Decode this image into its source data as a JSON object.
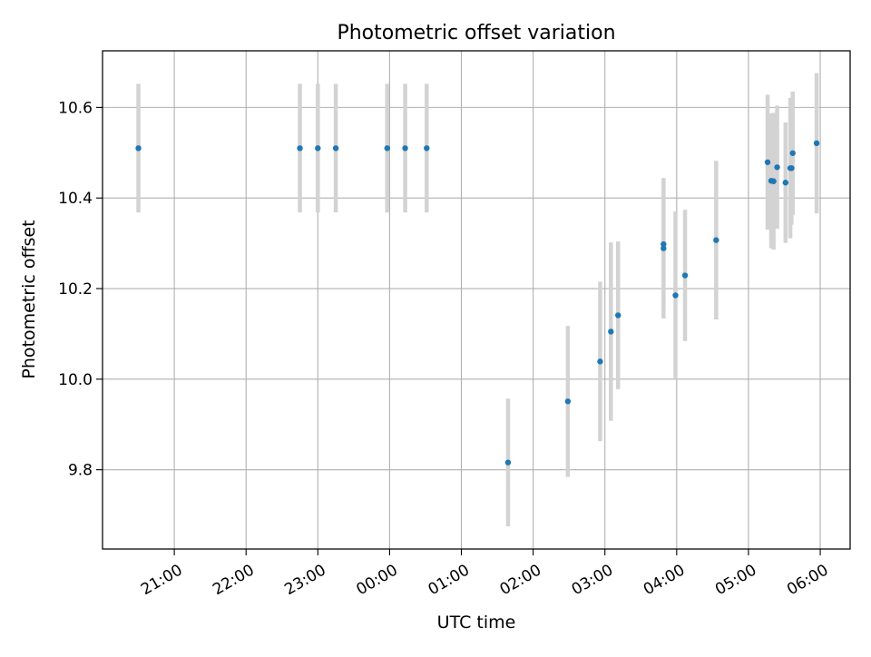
{
  "colors": {
    "point": "#1f77b4",
    "errorbar": "#d3d3d3",
    "grid": "#b0b0b0",
    "axes": "#000000"
  },
  "chart_data": {
    "type": "scatter",
    "title": "Photometric offset variation",
    "xlabel": "UTC time",
    "ylabel": "Photometric offset",
    "grid": true,
    "x_axis": "time (hours from 21:00)",
    "xlim": [
      "20:00",
      "06:25"
    ],
    "ylim": [
      9.625,
      10.725
    ],
    "x_ticks": [
      "21:00",
      "22:00",
      "23:00",
      "00:00",
      "01:00",
      "02:00",
      "03:00",
      "04:00",
      "05:00",
      "06:00"
    ],
    "y_ticks": [
      "9.8",
      "10.0",
      "10.2",
      "10.4",
      "10.6"
    ],
    "points": [
      {
        "time": "20:30",
        "y": 10.51,
        "err": 0.142
      },
      {
        "time": "22:45",
        "y": 10.51,
        "err": 0.142
      },
      {
        "time": "23:00",
        "y": 10.51,
        "err": 0.142
      },
      {
        "time": "23:15",
        "y": 10.51,
        "err": 0.142
      },
      {
        "time": "23:58",
        "y": 10.51,
        "err": 0.142
      },
      {
        "time": "00:13",
        "y": 10.51,
        "err": 0.142
      },
      {
        "time": "00:31",
        "y": 10.51,
        "err": 0.142
      },
      {
        "time": "01:39",
        "y": 9.816,
        "err": 0.141
      },
      {
        "time": "02:29",
        "y": 9.951,
        "err": 0.167
      },
      {
        "time": "02:56",
        "y": 10.039,
        "err": 0.176
      },
      {
        "time": "03:05",
        "y": 10.105,
        "err": 0.197
      },
      {
        "time": "03:11",
        "y": 10.141,
        "err": 0.163
      },
      {
        "time": "03:49",
        "y": 10.298,
        "err": 0.144
      },
      {
        "time": "03:49",
        "y": 10.289,
        "err": 0.155
      },
      {
        "time": "03:59",
        "y": 10.185,
        "err": 0.185
      },
      {
        "time": "04:07",
        "y": 10.229,
        "err": 0.145
      },
      {
        "time": "04:33",
        "y": 10.307,
        "err": 0.175
      },
      {
        "time": "05:16",
        "y": 10.479,
        "err": 0.149
      },
      {
        "time": "05:19",
        "y": 10.438,
        "err": 0.149
      },
      {
        "time": "05:21",
        "y": 10.437,
        "err": 0.151
      },
      {
        "time": "05:24",
        "y": 10.468,
        "err": 0.136
      },
      {
        "time": "05:31",
        "y": 10.434,
        "err": 0.133
      },
      {
        "time": "05:35",
        "y": 10.466,
        "err": 0.155
      },
      {
        "time": "05:36",
        "y": 10.466,
        "err": 0.125
      },
      {
        "time": "05:37",
        "y": 10.499,
        "err": 0.136
      },
      {
        "time": "05:57",
        "y": 10.521,
        "err": 0.155
      }
    ]
  }
}
